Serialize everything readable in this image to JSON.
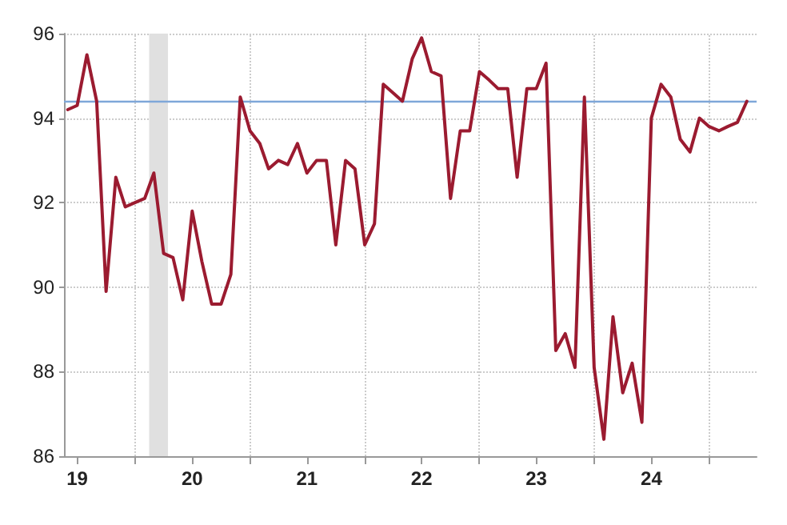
{
  "chart_data": {
    "type": "line",
    "x": [
      "2019-06",
      "2019-07",
      "2019-08",
      "2019-09",
      "2019-10",
      "2019-11",
      "2019-12",
      "2020-01",
      "2020-02",
      "2020-03",
      "2020-04",
      "2020-05",
      "2020-06",
      "2020-07",
      "2020-08",
      "2020-09",
      "2020-10",
      "2020-11",
      "2020-12",
      "2021-01",
      "2021-02",
      "2021-03",
      "2021-04",
      "2021-05",
      "2021-06",
      "2021-07",
      "2021-08",
      "2021-09",
      "2021-10",
      "2021-11",
      "2021-12",
      "2022-01",
      "2022-02",
      "2022-03",
      "2022-04",
      "2022-05",
      "2022-06",
      "2022-07",
      "2022-08",
      "2022-09",
      "2022-10",
      "2022-11",
      "2022-12",
      "2023-01",
      "2023-02",
      "2023-03",
      "2023-04",
      "2023-05",
      "2023-06",
      "2023-07",
      "2023-08",
      "2023-09",
      "2023-10",
      "2023-11",
      "2023-12",
      "2024-01",
      "2024-02",
      "2024-03",
      "2024-04",
      "2024-05",
      "2024-06",
      "2024-07",
      "2024-08",
      "2024-09",
      "2024-10",
      "2024-11",
      "2024-12",
      "2025-01",
      "2025-02",
      "2025-03",
      "2025-04",
      "2025-05"
    ],
    "series": [
      {
        "color": "#9b1b30",
        "values": [
          94.2,
          94.3,
          95.5,
          94.4,
          89.9,
          92.6,
          91.9,
          92.0,
          92.1,
          92.7,
          90.8,
          90.7,
          89.7,
          91.8,
          90.6,
          89.6,
          89.6,
          90.3,
          94.5,
          93.7,
          93.4,
          92.8,
          93.0,
          92.9,
          93.4,
          92.7,
          93.0,
          93.0,
          91.0,
          93.0,
          92.8,
          91.0,
          91.5,
          94.8,
          94.6,
          94.4,
          95.4,
          95.9,
          95.1,
          95.0,
          92.1,
          93.7,
          93.7,
          95.1,
          94.9,
          94.7,
          94.7,
          92.6,
          94.7,
          94.7,
          95.3,
          88.5,
          88.9,
          88.1,
          94.5,
          88.1,
          86.4,
          89.3,
          87.5,
          88.2,
          86.8,
          94.0,
          94.8,
          94.5,
          93.5,
          93.2,
          94.0,
          93.8,
          93.7,
          93.8,
          93.9,
          94.4
        ]
      }
    ],
    "xlim": [
      "2019-05-20",
      "2025-06-01"
    ],
    "xticks": [
      {
        "value": "2019-07-01",
        "label": "19"
      },
      {
        "value": "2020-01-01",
        "label": null
      },
      {
        "value": "2020-07-01",
        "label": "20"
      },
      {
        "value": "2021-01-01",
        "label": null
      },
      {
        "value": "2021-07-01",
        "label": "21"
      },
      {
        "value": "2022-01-01",
        "label": null
      },
      {
        "value": "2022-07-01",
        "label": "22"
      },
      {
        "value": "2023-01-01",
        "label": null
      },
      {
        "value": "2023-07-01",
        "label": "23"
      },
      {
        "value": "2024-01-01",
        "label": null
      },
      {
        "value": "2024-07-01",
        "label": "24"
      },
      {
        "value": "2025-01-01",
        "label": null
      }
    ],
    "ylim": [
      86,
      96
    ],
    "yticks": [
      86,
      88,
      90,
      92,
      94,
      96
    ],
    "grid": true,
    "line_style": "solid",
    "marker": "none",
    "ref_lines": [
      {
        "axis": "y",
        "value": 94.4,
        "color": "#7fa7d9"
      }
    ],
    "bands": [
      {
        "axis": "x",
        "from": "2020-02-15",
        "to": "2020-04-15",
        "color": "#e0e0e0"
      }
    ]
  }
}
